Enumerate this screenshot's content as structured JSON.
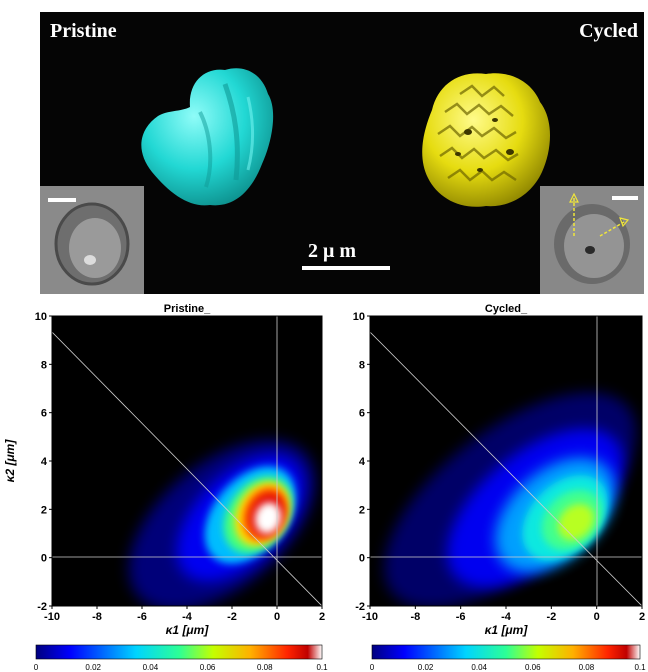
{
  "top_panel": {
    "left_label": "Pristine",
    "right_label": "Cycled",
    "scale_label": "2 μ m",
    "pristine_color": "#2fe6e0",
    "cycled_color": "#ece21a"
  },
  "colorbar_ticks": [
    "0",
    "0.02",
    "0.04",
    "0.06",
    "0.08",
    "0.1"
  ],
  "chart_data": [
    {
      "type": "heatmap",
      "title": "Pristine_",
      "xlabel": "κ1 [μm]",
      "ylabel": "κ2 [μm]",
      "xlim": [
        -10,
        2
      ],
      "ylim": [
        -2,
        10
      ],
      "xticks": [
        -10,
        -8,
        -6,
        -4,
        -2,
        0,
        2
      ],
      "yticks": [
        -2,
        0,
        2,
        4,
        6,
        8,
        10
      ],
      "colorbar": {
        "range": [
          0,
          0.1
        ],
        "ticks": [
          0,
          0.02,
          0.04,
          0.06,
          0.08,
          0.1
        ]
      },
      "peak": {
        "x": -0.2,
        "y": 1.2,
        "value": 0.1
      },
      "reference_lines": [
        "x = 0",
        "y = 0",
        "y = -x"
      ]
    },
    {
      "type": "heatmap",
      "title": "Cycled_",
      "xlabel": "κ1 [μm]",
      "ylabel": "",
      "xlim": [
        -10,
        2
      ],
      "ylim": [
        -2,
        10
      ],
      "xticks": [
        -10,
        -8,
        -6,
        -4,
        -2,
        0,
        2
      ],
      "yticks": [
        -2,
        0,
        2,
        4,
        6,
        8,
        10
      ],
      "colorbar": {
        "range": [
          0,
          0.1
        ],
        "ticks": [
          0,
          0.02,
          0.04,
          0.06,
          0.08,
          0.1
        ]
      },
      "peak": {
        "x": -0.8,
        "y": 1.4,
        "value": 0.055
      },
      "reference_lines": [
        "x = 0",
        "y = 0",
        "y = -x"
      ]
    }
  ]
}
